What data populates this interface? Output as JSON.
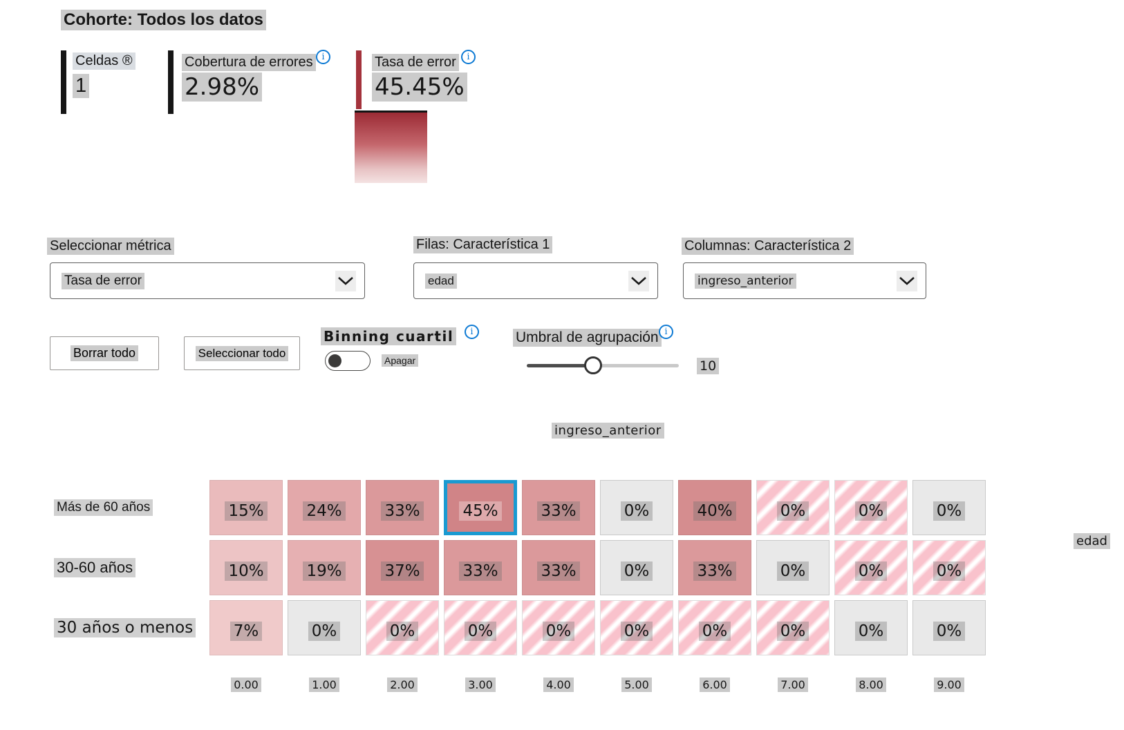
{
  "title": "Cohorte: Todos los datos",
  "stats": {
    "cells": {
      "label": "Celdas ®",
      "value": "1"
    },
    "coverage": {
      "label": "Cobertura de errores",
      "value": "2.98%"
    },
    "error_rate": {
      "label": "Tasa de error",
      "value": "45.45%"
    }
  },
  "selectors": {
    "metric_label": "Seleccionar métrica",
    "metric_value": "Tasa de error",
    "rows_label": "Filas: Característica 1",
    "rows_value": "edad",
    "cols_label": "Columnas: Característica 2",
    "cols_value": "ingreso_anterior"
  },
  "actions": {
    "clear_all": "Borrar todo",
    "select_all": "Seleccionar todo"
  },
  "binning": {
    "label": "Binning cuartil",
    "state_label": "Apagar",
    "enabled": false
  },
  "threshold": {
    "label": "Umbral de agrupación",
    "value": "10",
    "position_pct": 44
  },
  "colors": {
    "accent_blue": "#1a9ad1",
    "bar_red": "#a4333c",
    "bar_black": "#161616",
    "info_blue": "#0d7ad4",
    "legend_top": "#9c2b35",
    "legend_bottom": "#f4e2e2"
  },
  "chart_data": {
    "type": "heatmap",
    "title": "ingreso_anterior",
    "x_axis_label": "ingreso_anterior",
    "y_axis_label": "edad",
    "columns": [
      "0.00",
      "1.00",
      "2.00",
      "3.00",
      "4.00",
      "5.00",
      "6.00",
      "7.00",
      "8.00",
      "9.00"
    ],
    "rows": [
      "Más de 60 años",
      "30-60 años",
      "30 años o menos"
    ],
    "legend": "error rate: darker red = higher, gray = 0%, hatched = no errors / sparse",
    "selected_cell": {
      "row": 0,
      "col": 3,
      "value": "45%"
    },
    "cells": [
      [
        {
          "v": "15%",
          "t": "fill",
          "c": "#eabbbc"
        },
        {
          "v": "24%",
          "t": "fill",
          "c": "#e3a8aa"
        },
        {
          "v": "33%",
          "t": "fill",
          "c": "#db999b"
        },
        {
          "v": "45%",
          "t": "fill",
          "c": "#d08487",
          "selected": true
        },
        {
          "v": "33%",
          "t": "fill",
          "c": "#db999b"
        },
        {
          "v": "0%",
          "t": "zero"
        },
        {
          "v": "40%",
          "t": "fill",
          "c": "#d58d8f"
        },
        {
          "v": "0%",
          "t": "hatch"
        },
        {
          "v": "0%",
          "t": "hatch"
        },
        {
          "v": "0%",
          "t": "zero"
        }
      ],
      [
        {
          "v": "10%",
          "t": "fill",
          "c": "#edc4c5"
        },
        {
          "v": "19%",
          "t": "fill",
          "c": "#e6b0b2"
        },
        {
          "v": "37%",
          "t": "fill",
          "c": "#d79193"
        },
        {
          "v": "33%",
          "t": "fill",
          "c": "#db999b"
        },
        {
          "v": "33%",
          "t": "fill",
          "c": "#db999b"
        },
        {
          "v": "0%",
          "t": "zero"
        },
        {
          "v": "33%",
          "t": "fill",
          "c": "#db999b"
        },
        {
          "v": "0%",
          "t": "zero"
        },
        {
          "v": "0%",
          "t": "hatch"
        },
        {
          "v": "0%",
          "t": "hatch"
        }
      ],
      [
        {
          "v": "7%",
          "t": "fill",
          "c": "#f0caca"
        },
        {
          "v": "0%",
          "t": "zero"
        },
        {
          "v": "0%",
          "t": "hatch"
        },
        {
          "v": "0%",
          "t": "hatch"
        },
        {
          "v": "0%",
          "t": "hatch"
        },
        {
          "v": "0%",
          "t": "hatch"
        },
        {
          "v": "0%",
          "t": "hatch"
        },
        {
          "v": "0%",
          "t": "hatch"
        },
        {
          "v": "0%",
          "t": "zero"
        },
        {
          "v": "0%",
          "t": "zero"
        }
      ]
    ]
  }
}
